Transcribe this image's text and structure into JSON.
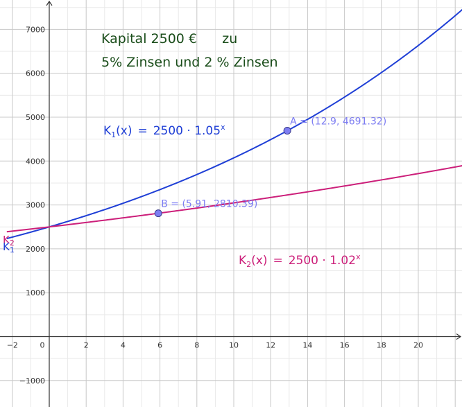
{
  "chart_data": {
    "type": "line",
    "title_lines": [
      "Kapital 2500 €      zu",
      "5% Zinsen und 2 % Zinsen"
    ],
    "xlim": [
      -2.3,
      22.5
    ],
    "ylim": [
      -1400,
      7700
    ],
    "x_ticks": [
      -2,
      2,
      4,
      6,
      8,
      10,
      12,
      14,
      16,
      18,
      20
    ],
    "y_ticks": [
      -1000,
      1000,
      2000,
      3000,
      4000,
      5000,
      6000,
      7000
    ],
    "origin_label": "0",
    "x_minor_step": 1,
    "y_minor_step": 500,
    "grid": true,
    "series": [
      {
        "name": "K1",
        "name_main": "K",
        "name_sub": "1",
        "color": "#1f3fd6",
        "formula": {
          "lhs": "K",
          "sub": "1",
          "arg": "(x)",
          "eq": "=",
          "rhs": "2500 · 1.05",
          "exp": "x"
        },
        "function": {
          "a": 2500,
          "b": 1.05
        }
      },
      {
        "name": "K2",
        "name_main": "K",
        "name_sub": "2",
        "color": "#cc1f7a",
        "formula": {
          "lhs": "K",
          "sub": "2",
          "arg": "(x)",
          "eq": "=",
          "rhs": "2500 · 1.02",
          "exp": "x"
        },
        "function": {
          "a": 2500,
          "b": 1.02
        }
      }
    ],
    "points": [
      {
        "label": "A = (12.9, 4691.32)",
        "x": 12.9,
        "y": 4691.32
      },
      {
        "label": "B = (5.91, 2810.39)",
        "x": 5.91,
        "y": 2810.39
      }
    ],
    "point_color": "#7d7df2"
  }
}
